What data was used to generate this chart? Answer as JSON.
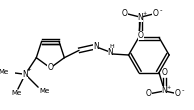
{
  "bg_color": "#ffffff",
  "line_color": "#000000",
  "line_width": 1.0,
  "figsize": [
    1.94,
    1.1
  ],
  "dpi": 100,
  "font_size": 5.5,
  "xlim": [
    0,
    194
  ],
  "ylim": [
    0,
    110
  ]
}
